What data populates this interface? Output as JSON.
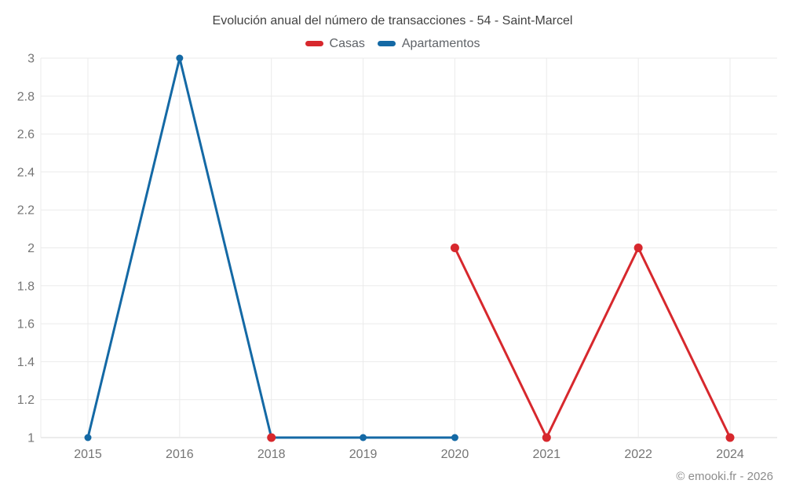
{
  "footer": {
    "copyright": "© emooki.fr - 2026"
  },
  "chart_data": {
    "type": "line",
    "title": "Evolución anual del número de transacciones - 54 - Saint-Marcel",
    "xlabel": "",
    "ylabel": "",
    "categories": [
      "2015",
      "2016",
      "2018",
      "2019",
      "2020",
      "2021",
      "2022",
      "2024"
    ],
    "series": [
      {
        "name": "Casas",
        "color": "#d7282d",
        "values": [
          null,
          null,
          1,
          null,
          2,
          1,
          2,
          1
        ]
      },
      {
        "name": "Apartamentos",
        "color": "#1469a5",
        "values": [
          1,
          3,
          1,
          1,
          1,
          null,
          null,
          null
        ]
      }
    ],
    "ylim": [
      1,
      3
    ],
    "yticks": [
      {
        "v": 1,
        "label": "1"
      },
      {
        "v": 1.2,
        "label": "1.2"
      },
      {
        "v": 1.4,
        "label": "1.4"
      },
      {
        "v": 1.6,
        "label": "1.6"
      },
      {
        "v": 1.8,
        "label": "1.8"
      },
      {
        "v": 2,
        "label": "2"
      },
      {
        "v": 2.2,
        "label": "2.2"
      },
      {
        "v": 2.4,
        "label": "2.4"
      },
      {
        "v": 2.6,
        "label": "2.6"
      },
      {
        "v": 2.8,
        "label": "2.8"
      },
      {
        "v": 3,
        "label": "3"
      }
    ],
    "grid": true,
    "legend_position": "top"
  }
}
